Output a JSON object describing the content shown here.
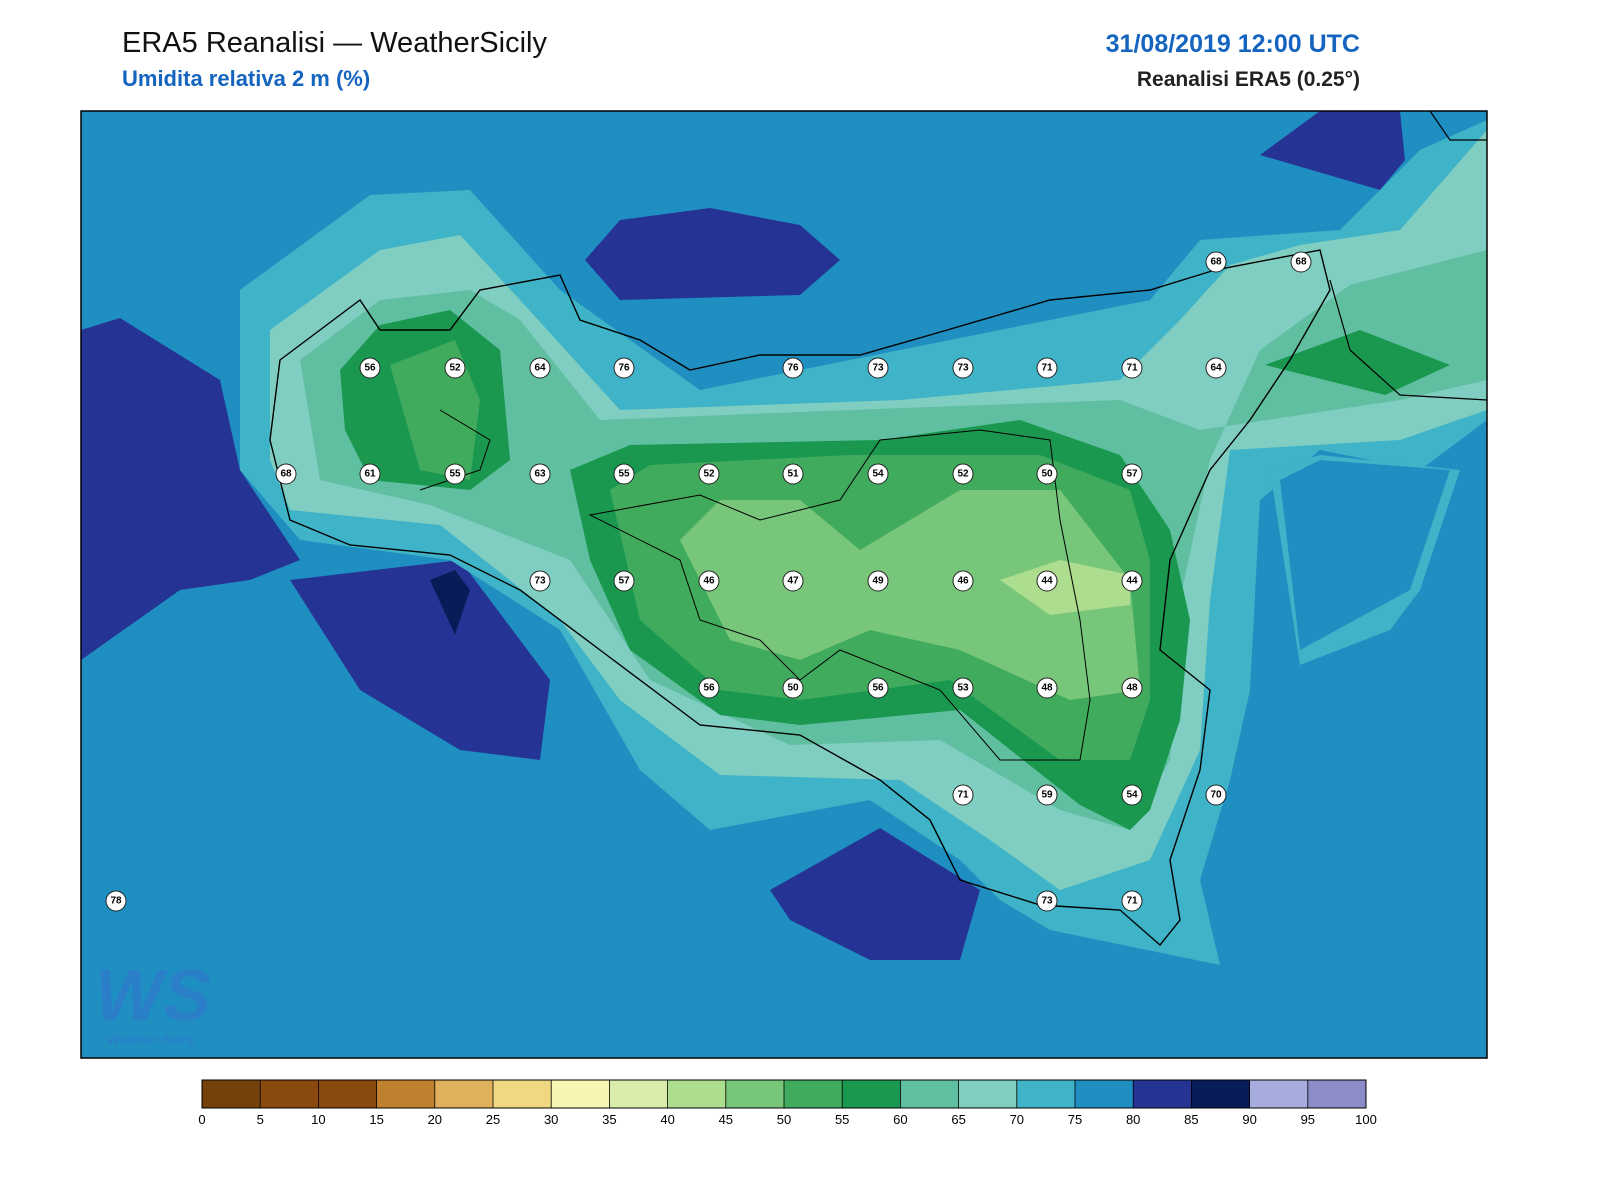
{
  "header": {
    "title": "ERA5 Reanalisi — WeatherSicily",
    "subtitle": "Umidita relativa 2 m (%)",
    "date": "31/08/2019 12:00 UTC",
    "source": "Reanalisi ERA5 (0.25°)"
  },
  "stations": [
    68,
    68,
    56,
    52,
    64,
    76,
    76,
    73,
    73,
    71,
    71,
    64,
    68,
    61,
    55,
    63,
    55,
    52,
    51,
    54,
    52,
    50,
    57,
    73,
    57,
    46,
    47,
    49,
    46,
    44,
    44,
    56,
    50,
    56,
    53,
    48,
    48,
    71,
    59,
    54,
    70,
    78,
    73,
    71
  ],
  "logo": {
    "mark": "WS",
    "text": "Weather Sicily"
  },
  "colorbar": {
    "bins": [
      0,
      5,
      10,
      15,
      20,
      25,
      30,
      35,
      40,
      45,
      50,
      55,
      60,
      65,
      70,
      75,
      80,
      85,
      90,
      95,
      100
    ],
    "colors": [
      "#74410a",
      "#8a4a0d",
      "#8a4a0d",
      "#bf812d",
      "#dfb15c",
      "#f0d782",
      "#f6f5b3",
      "#d9eeaa",
      "#addd8e",
      "#78c679",
      "#41ab5d",
      "#1a9850",
      "#5fbfa0",
      "#80cdc1",
      "#3fb3c7",
      "#1f8fc2",
      "#253494",
      "#081d58",
      "#a6acdc",
      "#8c8cc8"
    ]
  }
}
